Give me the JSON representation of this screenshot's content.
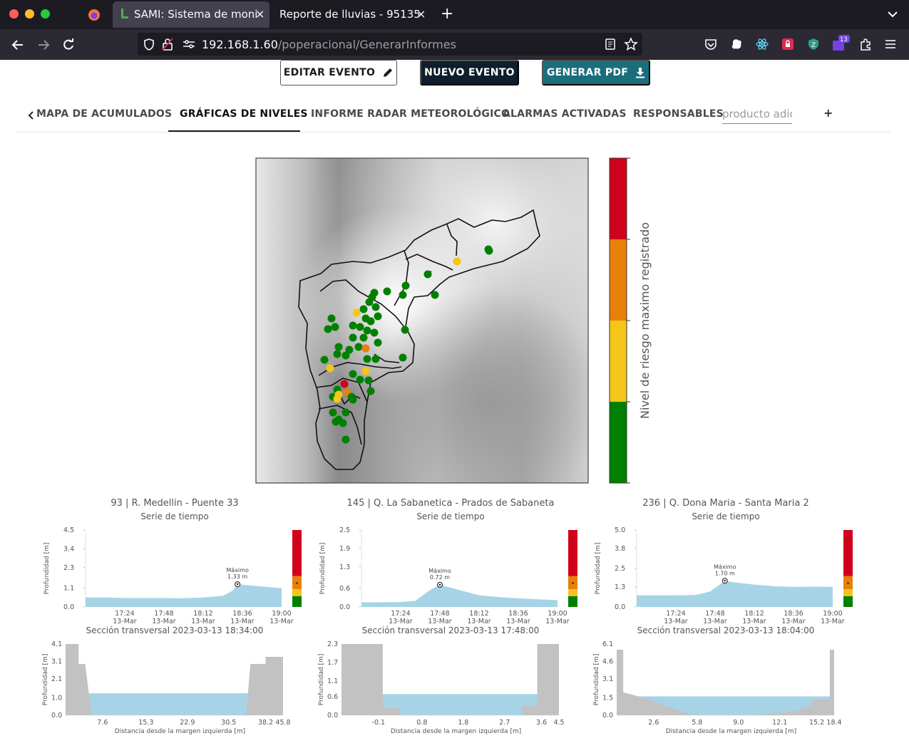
{
  "browser": {
    "tabs": [
      {
        "title": "SAMI: Sistema de moni",
        "active": true
      },
      {
        "title": "Reporte de lluvias - 95135",
        "active": false
      }
    ],
    "url": {
      "host": "192.168.1.60",
      "path": "/poperacional/GenerarInformes"
    },
    "extension_badge": "13"
  },
  "actions": {
    "edit": "EDITAR EVENTO",
    "new": "NUEVO EVENTO",
    "pdf": "GENERAR PDF"
  },
  "page_tabs": {
    "items": [
      "MAPA DE ACUMULADOS",
      "GRÁFICAS DE NIVELES",
      "INFORME RADAR METEOROLÓGICO",
      "ALARMAS ACTIVADAS",
      "RESPONSABLES"
    ],
    "visible_first": "MAPA DE ACUMULADOS",
    "active": "GRÁFICAS DE NIVELES",
    "input_placeholder": "producto adicional",
    "add_label": "+"
  },
  "map": {
    "colorbar_label": "Nivel de riesgo maximo registrado",
    "risk_colors": [
      "#008000",
      "#f5c518",
      "#e8800a",
      "#d0021b"
    ]
  },
  "chart_data": [
    {
      "type": "area",
      "station": "93 | R. Medellin - Puente 33",
      "title": "Serie de tiempo",
      "ylabel": "Profundidad [m]",
      "yticks": [
        0.0,
        1.1,
        2.3,
        3.4,
        4.5
      ],
      "ylim": [
        0,
        4.5
      ],
      "xticks": [
        "17:24\n13-Mar",
        "17:48\n13-Mar",
        "18:12\n13-Mar",
        "18:36\n13-Mar",
        "19:00\n13-Mar"
      ],
      "x": [
        17.0,
        17.2,
        17.4,
        17.6,
        17.8,
        18.0,
        18.2,
        18.4,
        18.5,
        18.55,
        18.6,
        18.75,
        18.9,
        19.0
      ],
      "y": [
        0.55,
        0.55,
        0.52,
        0.52,
        0.52,
        0.51,
        0.55,
        0.65,
        0.95,
        1.33,
        1.3,
        1.22,
        1.15,
        1.1
      ],
      "max_label": "Máximo",
      "max_value": "1.33 m",
      "risk_level_marker": 1.33,
      "section": {
        "title": "Sección transversal 2023-03-13 18:34:00",
        "xlabel": "Distancia desde la margen izquierda [m]",
        "ylabel": "Profundidad [m]",
        "yticks": [
          0.0,
          1.0,
          2.1,
          3.1,
          4.1
        ],
        "xticks": [
          7.6,
          15.3,
          22.9,
          30.5,
          38.2,
          45.8
        ],
        "water_level": 1.33
      }
    },
    {
      "type": "area",
      "station": "145 | Q. La Sabanetica - Prados de Sabaneta",
      "title": "Serie de tiempo",
      "ylabel": "Profundidad [m]",
      "yticks": [
        0.0,
        0.6,
        1.3,
        1.9,
        2.5
      ],
      "ylim": [
        0,
        2.5
      ],
      "xticks": [
        "17:24\n13-Mar",
        "17:48\n13-Mar",
        "18:12\n13-Mar",
        "18:36\n13-Mar",
        "19:00\n13-Mar"
      ],
      "x": [
        17.0,
        17.2,
        17.4,
        17.55,
        17.7,
        17.8,
        18.0,
        18.2,
        18.4,
        18.6,
        18.8,
        19.0
      ],
      "y": [
        0.15,
        0.15,
        0.16,
        0.2,
        0.55,
        0.72,
        0.55,
        0.38,
        0.32,
        0.28,
        0.25,
        0.22
      ],
      "max_label": "Máximo",
      "max_value": "0.72 m",
      "risk_level_marker": 0.72,
      "section": {
        "title": "Sección transversal 2023-03-13 17:48:00",
        "xlabel": "Distancia desde la margen izquierda [m]",
        "ylabel": "Profundidad [m]",
        "yticks": [
          0.0,
          0.6,
          1.1,
          1.7,
          2.3
        ],
        "xticks": [
          -0.1,
          0.8,
          1.8,
          2.7,
          3.6,
          4.5
        ],
        "water_level": 0.72
      }
    },
    {
      "type": "area",
      "station": "236 | Q. Dona Maria - Santa Maria 2",
      "title": "Serie de tiempo",
      "ylabel": "Profundidad [m]",
      "yticks": [
        0.0,
        1.3,
        2.5,
        3.8,
        5.0
      ],
      "ylim": [
        0,
        5.0
      ],
      "xticks": [
        "17:24\n13-Mar",
        "17:48\n13-Mar",
        "18:12\n13-Mar",
        "18:36\n13-Mar",
        "19:00\n13-Mar"
      ],
      "x": [
        17.0,
        17.2,
        17.4,
        17.6,
        17.75,
        17.9,
        18.0,
        18.2,
        18.4,
        18.6,
        18.8,
        19.0
      ],
      "y": [
        0.75,
        0.75,
        0.75,
        0.78,
        1.0,
        1.7,
        1.6,
        1.45,
        1.35,
        1.3,
        1.32,
        1.3
      ],
      "max_label": "Máximo",
      "max_value": "1.70 m",
      "risk_level_marker": 1.7,
      "section": {
        "title": "Sección transversal 2023-03-13 18:04:00",
        "xlabel": "Distancia desde la margen izquierda [m]",
        "ylabel": "Profundidad [m]",
        "yticks": [
          0.0,
          1.5,
          3.1,
          4.6,
          6.1
        ],
        "xticks": [
          2.6,
          5.8,
          9.0,
          12.1,
          15.2,
          18.4
        ],
        "water_level": 1.7
      }
    }
  ]
}
